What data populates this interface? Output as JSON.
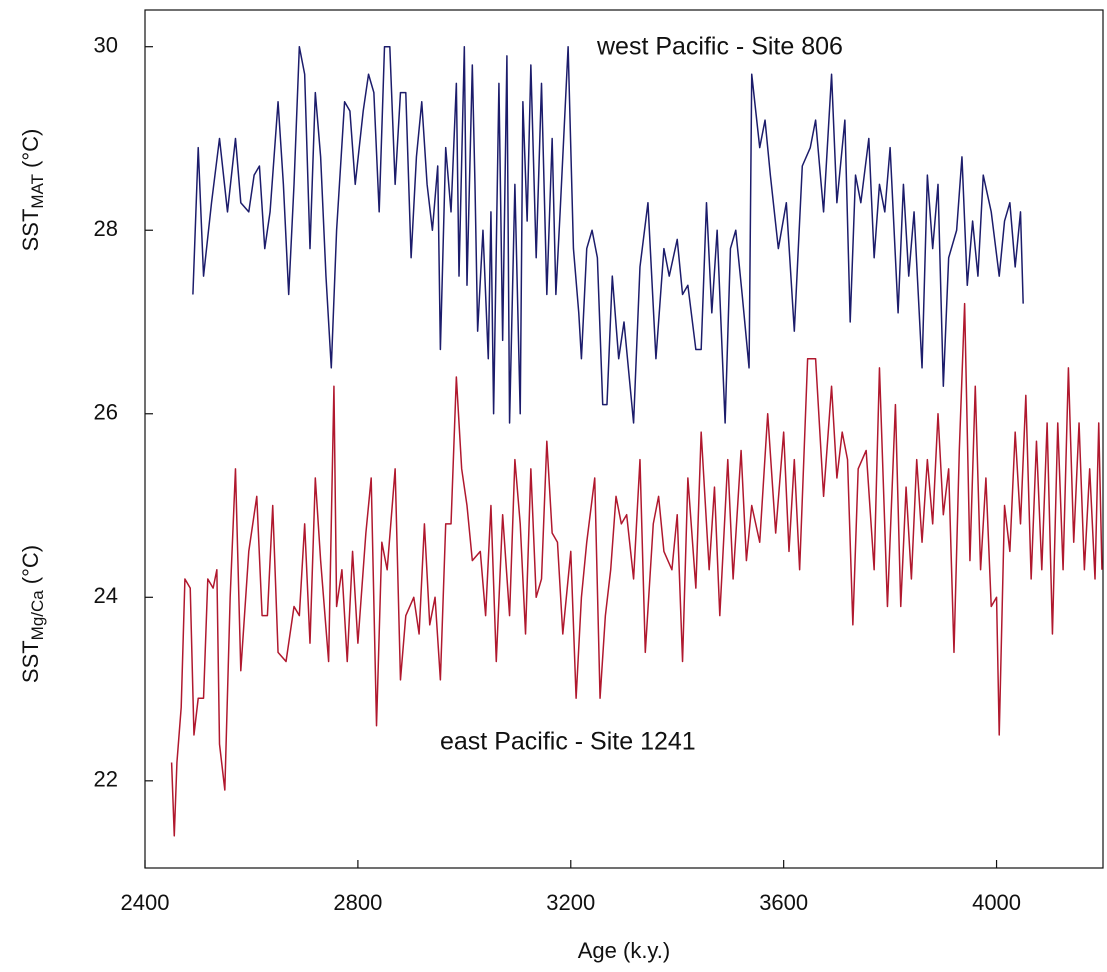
{
  "chart_data": {
    "type": "line",
    "xlabel": "Age (k.y.)",
    "ylabel_top": {
      "main": "SST",
      "sub": "MAT",
      "unit": "(°C)"
    },
    "ylabel_bottom": {
      "main": "SST",
      "sub": "Mg/Ca",
      "unit": "(°C)"
    },
    "xlim": [
      2400,
      4200
    ],
    "xticks": [
      2400,
      2800,
      3200,
      3600,
      4000
    ],
    "ylim": [
      21.05,
      30.4
    ],
    "yticks": [
      22,
      24,
      26,
      28,
      30
    ],
    "grid": false,
    "series": [
      {
        "name": "west Pacific - Site 806",
        "color": "#1c1c6b",
        "x": [
          2490,
          2500,
          2510,
          2525,
          2540,
          2555,
          2570,
          2580,
          2595,
          2605,
          2615,
          2625,
          2635,
          2650,
          2660,
          2670,
          2680,
          2690,
          2700,
          2710,
          2720,
          2730,
          2740,
          2750,
          2760,
          2775,
          2785,
          2795,
          2810,
          2820,
          2830,
          2840,
          2850,
          2860,
          2870,
          2880,
          2890,
          2900,
          2910,
          2920,
          2930,
          2940,
          2950,
          2955,
          2965,
          2975,
          2985,
          2990,
          3000,
          3005,
          3015,
          3020,
          3025,
          3035,
          3045,
          3050,
          3055,
          3065,
          3072,
          3080,
          3085,
          3095,
          3105,
          3110,
          3118,
          3125,
          3135,
          3145,
          3155,
          3165,
          3172,
          3180,
          3195,
          3205,
          3215,
          3220,
          3230,
          3240,
          3250,
          3260,
          3268,
          3278,
          3290,
          3300,
          3318,
          3330,
          3345,
          3360,
          3375,
          3385,
          3400,
          3410,
          3420,
          3435,
          3445,
          3455,
          3465,
          3475,
          3490,
          3500,
          3510,
          3522,
          3535,
          3540,
          3555,
          3565,
          3575,
          3590,
          3605,
          3620,
          3635,
          3650,
          3660,
          3675,
          3690,
          3700,
          3715,
          3725,
          3735,
          3745,
          3760,
          3770,
          3780,
          3790,
          3800,
          3815,
          3825,
          3835,
          3845,
          3860,
          3870,
          3880,
          3890,
          3900,
          3910,
          3925,
          3935,
          3945,
          3955,
          3965,
          3975,
          3990,
          4005,
          4015,
          4025,
          4035,
          4045,
          4050
        ],
        "values": [
          27.3,
          28.9,
          27.5,
          28.3,
          29.0,
          28.2,
          29.0,
          28.3,
          28.2,
          28.6,
          28.7,
          27.8,
          28.2,
          29.4,
          28.5,
          27.3,
          28.5,
          30.0,
          29.7,
          27.8,
          29.5,
          28.8,
          27.5,
          26.5,
          28.0,
          29.4,
          29.3,
          28.5,
          29.3,
          29.7,
          29.5,
          28.2,
          30.0,
          30.0,
          28.5,
          29.5,
          29.5,
          27.7,
          28.8,
          29.4,
          28.5,
          28.0,
          28.7,
          26.7,
          28.9,
          28.2,
          29.6,
          27.5,
          30.0,
          27.4,
          29.8,
          28.5,
          26.9,
          28.0,
          26.6,
          28.2,
          26.0,
          29.6,
          26.8,
          29.9,
          25.9,
          28.5,
          26.0,
          29.4,
          28.1,
          29.8,
          27.7,
          29.6,
          27.3,
          29.0,
          27.3,
          28.2,
          30.0,
          27.8,
          27.1,
          26.6,
          27.8,
          28.0,
          27.7,
          26.1,
          26.1,
          27.5,
          26.6,
          27.0,
          25.9,
          27.6,
          28.3,
          26.6,
          27.8,
          27.5,
          27.9,
          27.3,
          27.4,
          26.7,
          26.7,
          28.3,
          27.1,
          28.0,
          25.9,
          27.8,
          28.0,
          27.3,
          26.5,
          29.7,
          28.9,
          29.2,
          28.6,
          27.8,
          28.3,
          26.9,
          28.7,
          28.9,
          29.2,
          28.2,
          29.7,
          28.3,
          29.2,
          27.0,
          28.6,
          28.3,
          29.0,
          27.7,
          28.5,
          28.2,
          28.9,
          27.1,
          28.5,
          27.5,
          28.2,
          26.5,
          28.6,
          27.8,
          28.5,
          26.3,
          27.7,
          28.0,
          28.8,
          27.4,
          28.1,
          27.5,
          28.6,
          28.2,
          27.5,
          28.1,
          28.3,
          27.6,
          28.2,
          27.2
        ]
      },
      {
        "name": "east Pacific - Site 1241",
        "color": "#b0182e",
        "x": [
          2450,
          2455,
          2460,
          2468,
          2475,
          2485,
          2492,
          2500,
          2510,
          2518,
          2528,
          2535,
          2540,
          2550,
          2560,
          2570,
          2580,
          2595,
          2610,
          2620,
          2630,
          2640,
          2650,
          2665,
          2680,
          2690,
          2700,
          2710,
          2720,
          2730,
          2745,
          2755,
          2760,
          2770,
          2780,
          2790,
          2800,
          2815,
          2825,
          2835,
          2845,
          2855,
          2870,
          2880,
          2890,
          2905,
          2915,
          2925,
          2935,
          2945,
          2955,
          2965,
          2975,
          2985,
          2995,
          3005,
          3015,
          3030,
          3040,
          3050,
          3060,
          3072,
          3085,
          3095,
          3105,
          3115,
          3125,
          3135,
          3145,
          3155,
          3165,
          3175,
          3185,
          3200,
          3210,
          3220,
          3230,
          3245,
          3255,
          3265,
          3275,
          3285,
          3295,
          3305,
          3318,
          3330,
          3340,
          3355,
          3365,
          3375,
          3390,
          3400,
          3410,
          3420,
          3435,
          3445,
          3460,
          3470,
          3480,
          3495,
          3505,
          3520,
          3530,
          3540,
          3555,
          3570,
          3585,
          3600,
          3610,
          3620,
          3630,
          3645,
          3660,
          3675,
          3690,
          3700,
          3710,
          3720,
          3730,
          3740,
          3755,
          3770,
          3780,
          3795,
          3810,
          3820,
          3830,
          3840,
          3850,
          3860,
          3870,
          3880,
          3890,
          3900,
          3910,
          3920,
          3930,
          3940,
          3950,
          3960,
          3970,
          3980,
          3990,
          4000,
          4005,
          4015,
          4025,
          4035,
          4045,
          4055,
          4065,
          4075,
          4085,
          4095,
          4105,
          4115,
          4125,
          4135,
          4145,
          4155,
          4165,
          4175,
          4185,
          4192,
          4198
        ],
        "values": [
          22.2,
          21.4,
          22.2,
          22.8,
          24.2,
          24.1,
          22.5,
          22.9,
          22.9,
          24.2,
          24.1,
          24.3,
          22.4,
          21.9,
          24.0,
          25.4,
          23.2,
          24.5,
          25.1,
          23.8,
          23.8,
          25.0,
          23.4,
          23.3,
          23.9,
          23.8,
          24.8,
          23.5,
          25.3,
          24.4,
          23.3,
          26.3,
          23.9,
          24.3,
          23.3,
          24.5,
          23.5,
          24.7,
          25.3,
          22.6,
          24.6,
          24.3,
          25.4,
          23.1,
          23.8,
          24.0,
          23.6,
          24.8,
          23.7,
          24.0,
          23.1,
          24.8,
          24.8,
          26.4,
          25.4,
          25.0,
          24.4,
          24.5,
          23.8,
          25.0,
          23.3,
          24.9,
          23.8,
          25.5,
          24.8,
          23.6,
          25.4,
          24.0,
          24.2,
          25.7,
          24.7,
          24.6,
          23.6,
          24.5,
          22.9,
          24.0,
          24.6,
          25.3,
          22.9,
          23.8,
          24.3,
          25.1,
          24.8,
          24.9,
          24.2,
          25.5,
          23.4,
          24.8,
          25.1,
          24.5,
          24.3,
          24.9,
          23.3,
          25.3,
          24.1,
          25.8,
          24.3,
          25.2,
          23.8,
          25.5,
          24.2,
          25.6,
          24.4,
          25.0,
          24.6,
          26.0,
          24.7,
          25.8,
          24.5,
          25.5,
          24.3,
          26.6,
          26.6,
          25.1,
          26.3,
          25.3,
          25.8,
          25.5,
          23.7,
          25.4,
          25.6,
          24.3,
          26.5,
          23.9,
          26.1,
          23.9,
          25.2,
          24.2,
          25.5,
          24.6,
          25.5,
          24.8,
          26.0,
          24.9,
          25.4,
          23.4,
          25.6,
          27.2,
          24.4,
          26.3,
          24.3,
          25.3,
          23.9,
          24.0,
          22.5,
          25.0,
          24.5,
          25.8,
          24.8,
          26.2,
          24.2,
          25.7,
          24.3,
          25.9,
          23.6,
          25.9,
          24.3,
          26.5,
          24.6,
          25.9,
          24.3,
          25.4,
          24.2,
          25.9,
          24.3
        ]
      }
    ]
  }
}
